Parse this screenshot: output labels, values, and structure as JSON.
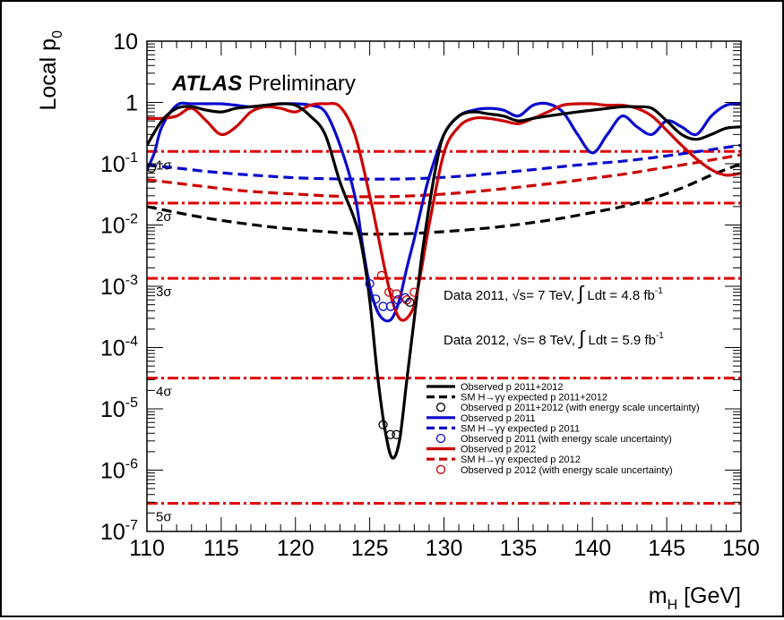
{
  "chart_data": {
    "type": "line",
    "title": "",
    "watermark": {
      "bold": "ATLAS",
      "normal": "Preliminary"
    },
    "xlabel": "m_H [GeV]",
    "xlabel_main": "m",
    "xlabel_sub": "H",
    "xlabel_unit": " [GeV]",
    "ylabel": "Local p_0",
    "ylabel_main": "Local p",
    "ylabel_sub": "0",
    "xlim": [
      110,
      150
    ],
    "ylim": [
      1e-07,
      10
    ],
    "yscale": "log",
    "xticks": [
      110,
      115,
      120,
      125,
      130,
      135,
      140,
      145,
      150
    ],
    "yticks": [
      {
        "value": 10,
        "label": "10"
      },
      {
        "value": 1,
        "label": "1"
      },
      {
        "value": 0.1,
        "label": "10",
        "exp": "-1"
      },
      {
        "value": 0.01,
        "label": "10",
        "exp": "-2"
      },
      {
        "value": 0.001,
        "label": "10",
        "exp": "-3"
      },
      {
        "value": 0.0001,
        "label": "10",
        "exp": "-4"
      },
      {
        "value": 1e-05,
        "label": "10",
        "exp": "-5"
      },
      {
        "value": 1e-06,
        "label": "10",
        "exp": "-6"
      },
      {
        "value": 1e-07,
        "label": "10",
        "exp": "-7"
      }
    ],
    "sigma_lines": [
      {
        "value": 0.1587,
        "label": "1σ"
      },
      {
        "value": 0.02275,
        "label": "2σ"
      },
      {
        "value": 0.00135,
        "label": "3σ"
      },
      {
        "value": 3.17e-05,
        "label": "4σ"
      },
      {
        "value": 2.87e-07,
        "label": "5σ"
      }
    ],
    "annotations": [
      {
        "parts": [
          "Data 2011, ",
          "√s",
          "= 7 TeV, ",
          "∫",
          " Ldt = 4.8 fb",
          "-1"
        ]
      },
      {
        "parts": [
          "Data 2012, ",
          "√s",
          "= 8 TeV, ",
          "∫",
          " Ldt = 5.9 fb",
          "-1"
        ]
      }
    ],
    "legend_position": "bottom-right",
    "legend": [
      {
        "style": "solid",
        "color": "#000000",
        "label": "Observed p  2011+2012"
      },
      {
        "style": "dashed",
        "color": "#000000",
        "label": "SM H→γγ expected  p  2011+2012"
      },
      {
        "style": "marker",
        "color": "#000000",
        "label": "Observed p  2011+2012 (with energy scale uncertainty)"
      },
      {
        "style": "solid",
        "color": "#0a0acd",
        "label": "Observed p  2011"
      },
      {
        "style": "dashed",
        "color": "#0a0acd",
        "label": "SM H→γγ expected  p  2011"
      },
      {
        "style": "marker",
        "color": "#0a0acd",
        "label": "Observed p  2011 (with energy scale uncertainty)"
      },
      {
        "style": "solid",
        "color": "#cc0000",
        "label": "Observed p  2012"
      },
      {
        "style": "dashed",
        "color": "#cc0000",
        "label": "SM H→γγ expected  p  2012"
      },
      {
        "style": "marker",
        "color": "#cc0000",
        "label": "Observed p  2012 (with energy scale uncertainty)"
      }
    ],
    "series": [
      {
        "name": "Observed p0 2011+2012",
        "style": "solid",
        "color": "#000000",
        "x": [
          110,
          111,
          112,
          113,
          114,
          115,
          116,
          117,
          118,
          119,
          120,
          121,
          122,
          123,
          124,
          124.5,
          125,
          125.5,
          126,
          126.5,
          127,
          127.5,
          128,
          128.5,
          129,
          129.5,
          130,
          131,
          132,
          133,
          134,
          135,
          136,
          137,
          138,
          139,
          140,
          141,
          142,
          143,
          144,
          145,
          146,
          147,
          148,
          149,
          150
        ],
        "y": [
          0.2,
          0.5,
          0.8,
          0.85,
          0.75,
          0.7,
          0.8,
          0.85,
          0.9,
          0.95,
          0.9,
          0.6,
          0.3,
          0.05,
          0.012,
          0.004,
          0.0006,
          4e-05,
          5e-06,
          1.6e-06,
          3e-06,
          3e-05,
          0.0003,
          0.003,
          0.02,
          0.1,
          0.3,
          0.6,
          0.7,
          0.65,
          0.6,
          0.5,
          0.55,
          0.6,
          0.65,
          0.7,
          0.75,
          0.8,
          0.85,
          0.85,
          0.8,
          0.5,
          0.3,
          0.25,
          0.3,
          0.38,
          0.4
        ]
      },
      {
        "name": "SM H→γγ expected p0 2011+2012",
        "style": "dashed",
        "color": "#000000",
        "x": [
          110,
          112,
          114,
          116,
          118,
          120,
          122,
          124,
          126,
          128,
          130,
          132,
          134,
          136,
          138,
          140,
          142,
          144,
          146,
          148,
          150
        ],
        "y": [
          0.02,
          0.016,
          0.013,
          0.011,
          0.0095,
          0.0085,
          0.0078,
          0.0072,
          0.0071,
          0.0073,
          0.0078,
          0.0085,
          0.0095,
          0.011,
          0.013,
          0.016,
          0.02,
          0.027,
          0.04,
          0.065,
          0.1
        ]
      },
      {
        "name": "Observed p0 2011",
        "style": "solid",
        "color": "#0a0acd",
        "x": [
          110,
          110.5,
          111,
          112,
          113,
          114,
          115,
          116,
          117,
          118,
          119,
          120,
          121,
          122,
          123,
          124,
          124.5,
          125,
          125.5,
          126,
          126.5,
          127,
          127.5,
          128,
          128.5,
          129,
          130,
          131,
          132,
          133,
          134,
          135,
          136,
          137,
          138,
          139,
          140,
          141,
          142,
          143,
          144,
          145,
          146,
          147,
          148,
          149,
          150
        ],
        "y": [
          0.08,
          0.15,
          0.4,
          0.9,
          0.95,
          0.95,
          0.95,
          0.9,
          0.85,
          0.9,
          0.95,
          0.95,
          0.9,
          0.7,
          0.2,
          0.03,
          0.005,
          0.001,
          0.0004,
          0.00028,
          0.0003,
          0.0006,
          0.002,
          0.006,
          0.02,
          0.06,
          0.3,
          0.6,
          0.75,
          0.8,
          0.75,
          0.6,
          0.9,
          0.95,
          0.7,
          0.3,
          0.15,
          0.3,
          0.6,
          0.4,
          0.3,
          0.5,
          0.4,
          0.3,
          0.6,
          0.9,
          0.95
        ]
      },
      {
        "name": "SM H→γγ expected p0 2011",
        "style": "dashed",
        "color": "#0a0acd",
        "x": [
          110,
          112,
          114,
          116,
          118,
          120,
          122,
          124,
          126,
          128,
          130,
          132,
          134,
          136,
          138,
          140,
          142,
          144,
          146,
          148,
          150
        ],
        "y": [
          0.095,
          0.085,
          0.075,
          0.068,
          0.063,
          0.059,
          0.057,
          0.056,
          0.056,
          0.057,
          0.06,
          0.065,
          0.072,
          0.08,
          0.09,
          0.1,
          0.11,
          0.125,
          0.145,
          0.17,
          0.2
        ]
      },
      {
        "name": "Observed p0 2012",
        "style": "solid",
        "color": "#cc0000",
        "x": [
          110,
          111,
          112,
          113,
          114,
          115,
          116,
          117,
          118,
          119,
          120,
          121,
          122,
          123,
          124,
          125,
          125.5,
          126,
          126.5,
          127,
          127.5,
          128,
          128.5,
          129,
          130,
          131,
          132,
          133,
          134,
          135,
          136,
          137,
          138,
          139,
          140,
          141,
          142,
          143,
          144,
          145,
          146,
          147,
          148,
          149,
          150
        ],
        "y": [
          0.55,
          0.55,
          0.6,
          0.8,
          0.5,
          0.3,
          0.4,
          0.7,
          0.85,
          0.8,
          0.7,
          0.9,
          0.95,
          0.85,
          0.3,
          0.03,
          0.008,
          0.002,
          0.0006,
          0.0003,
          0.0003,
          0.0005,
          0.002,
          0.01,
          0.15,
          0.4,
          0.55,
          0.55,
          0.5,
          0.45,
          0.55,
          0.7,
          0.9,
          0.95,
          0.95,
          0.9,
          0.9,
          0.8,
          0.6,
          0.35,
          0.2,
          0.12,
          0.08,
          0.065,
          0.07
        ]
      },
      {
        "name": "SM H→γγ expected p0 2012",
        "style": "dashed",
        "color": "#cc0000",
        "x": [
          110,
          112,
          114,
          116,
          118,
          120,
          122,
          124,
          126,
          128,
          130,
          132,
          134,
          136,
          138,
          140,
          142,
          144,
          146,
          148,
          150
        ],
        "y": [
          0.055,
          0.048,
          0.042,
          0.037,
          0.034,
          0.032,
          0.03,
          0.029,
          0.029,
          0.03,
          0.032,
          0.035,
          0.039,
          0.044,
          0.05,
          0.058,
          0.067,
          0.08,
          0.095,
          0.115,
          0.14
        ]
      }
    ],
    "markers": [
      {
        "color": "#000000",
        "points": [
          [
            125.9,
            5.5e-06
          ],
          [
            126.4,
            3.8e-06
          ],
          [
            126.8,
            3.8e-06
          ]
        ]
      },
      {
        "color": "#0a0acd",
        "points": [
          [
            125,
            0.0011
          ],
          [
            125.4,
            0.00062
          ],
          [
            125.9,
            0.00047
          ],
          [
            126.4,
            0.00047
          ],
          [
            126.9,
            0.0006
          ],
          [
            127.4,
            0.00065
          ]
        ]
      },
      {
        "color": "#cc0000",
        "points": [
          [
            125.8,
            0.0015
          ],
          [
            126.3,
            0.0008
          ],
          [
            126.8,
            0.00075
          ],
          [
            127.5,
            0.0006
          ],
          [
            128,
            0.0008
          ]
        ]
      },
      {
        "color": "#000000",
        "points": [
          [
            110.3,
            0.085
          ],
          [
            127.7,
            0.00055
          ]
        ]
      }
    ]
  }
}
